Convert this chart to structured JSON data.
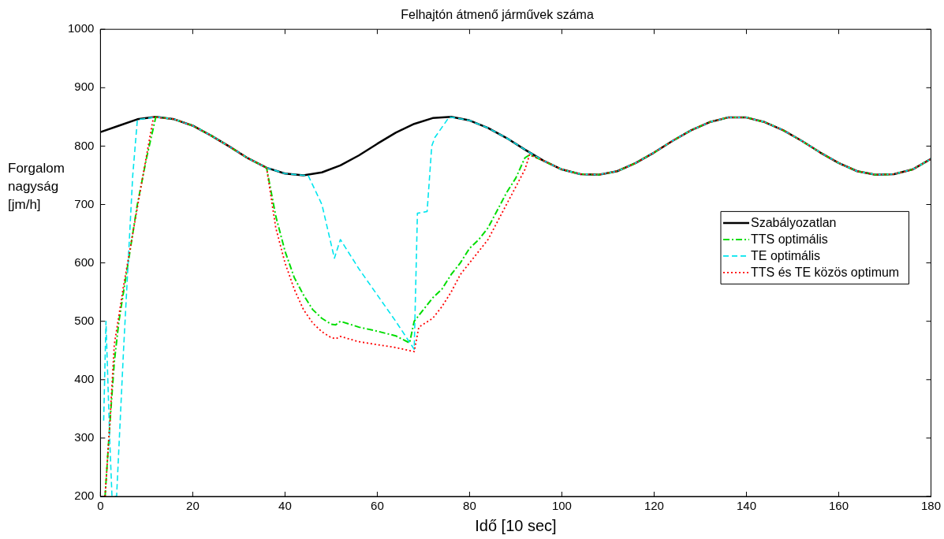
{
  "chart_data": {
    "type": "line",
    "title": "Felhajtón átmenő járművek száma",
    "xlabel": "Idő [10 sec]",
    "ylabel": "Forgalom nagyság [jm/h]",
    "xlim": [
      0,
      180
    ],
    "xticks": [
      0,
      20,
      40,
      60,
      80,
      100,
      120,
      140,
      160,
      180
    ],
    "ylim": [
      200,
      1000
    ],
    "yticks": [
      200,
      300,
      400,
      500,
      600,
      700,
      800,
      900,
      1000
    ],
    "grid": false,
    "legend": "right",
    "marker": "none",
    "series": [
      {
        "name": "Szabályozatlan",
        "color": "#000000",
        "line_style": "solid",
        "x": [
          0,
          4,
          8,
          12,
          16,
          20,
          24,
          28,
          32,
          36,
          40,
          44,
          48,
          52,
          56,
          60,
          64,
          68,
          72,
          76,
          80,
          84,
          88,
          92,
          96,
          100,
          104,
          108,
          112,
          116,
          120,
          124,
          128,
          132,
          136,
          140,
          144,
          148,
          152,
          156,
          160,
          164,
          168,
          172,
          176,
          180
        ],
        "values": [
          824,
          835,
          846,
          850,
          846,
          835,
          818,
          799,
          779,
          763,
          753,
          750,
          755,
          767,
          784,
          804,
          823,
          838,
          848,
          850,
          844,
          831,
          814,
          794,
          775,
          760,
          752,
          751,
          757,
          771,
          789,
          809,
          827,
          841,
          849,
          849,
          841,
          827,
          809,
          789,
          771,
          757,
          751,
          752,
          760,
          778
        ]
      },
      {
        "name": "TTS optimális",
        "color": "#00dd00",
        "line_style": "dashdot",
        "x": [
          1,
          2,
          3,
          4,
          6,
          8,
          10,
          12,
          16,
          20,
          24,
          28,
          32,
          36,
          38,
          40,
          42,
          44,
          46,
          48,
          50,
          51,
          52,
          56,
          60,
          64,
          67,
          68,
          70,
          72,
          74,
          76,
          78,
          80,
          82,
          84,
          86,
          88,
          90,
          92,
          93,
          96,
          100,
          104,
          108,
          112,
          116,
          120,
          124,
          128,
          132,
          136,
          140,
          144,
          148,
          152,
          156,
          160,
          164,
          168,
          172,
          176,
          180
        ],
        "values": [
          200,
          320,
          430,
          500,
          600,
          700,
          780,
          850,
          846,
          835,
          818,
          799,
          779,
          763,
          680,
          620,
          575,
          545,
          520,
          505,
          495,
          494,
          500,
          490,
          483,
          475,
          463,
          500,
          520,
          540,
          555,
          580,
          600,
          625,
          640,
          660,
          690,
          720,
          745,
          780,
          785,
          775,
          760,
          752,
          751,
          757,
          771,
          789,
          809,
          827,
          841,
          849,
          849,
          841,
          827,
          809,
          789,
          771,
          757,
          751,
          752,
          760,
          778
        ]
      },
      {
        "name": "TE optimális",
        "color": "#00e5ee",
        "line_style": "dashed",
        "x": [
          0.7,
          1.2,
          2,
          2.5,
          3.5,
          5,
          6,
          7,
          8,
          12,
          16,
          20,
          24,
          28,
          32,
          36,
          40,
          44,
          45,
          48,
          50.7,
          52,
          56,
          60,
          64,
          68,
          68.7,
          70.8,
          71.8,
          72.5,
          75.6,
          80,
          84,
          88,
          92,
          96,
          100,
          104,
          108,
          112,
          116,
          120,
          124,
          128,
          132,
          136,
          140,
          144,
          148,
          152,
          156,
          160,
          164,
          168,
          172,
          176,
          180
        ],
        "values": [
          330,
          500,
          300,
          200,
          200,
          450,
          600,
          750,
          845,
          850,
          846,
          835,
          818,
          799,
          779,
          763,
          753,
          750,
          750,
          700,
          608,
          640,
          590,
          545,
          500,
          452,
          685,
          688,
          800,
          815,
          850,
          844,
          831,
          814,
          794,
          775,
          760,
          752,
          751,
          757,
          771,
          789,
          809,
          827,
          841,
          849,
          849,
          841,
          827,
          809,
          789,
          771,
          757,
          751,
          752,
          760,
          778
        ]
      },
      {
        "name": "TTS és TE közös optimum",
        "color": "#ff0000",
        "line_style": "dotted",
        "x": [
          1,
          2,
          3,
          5,
          7,
          9,
          11.5,
          16,
          20,
          24,
          28,
          32,
          36,
          38,
          40,
          42,
          44,
          46,
          48,
          50,
          51,
          52,
          56,
          60,
          64,
          68,
          69,
          72,
          74,
          76,
          78,
          80,
          82,
          84,
          86,
          88,
          90,
          92,
          93,
          96,
          100,
          104,
          108,
          112,
          116,
          120,
          124,
          128,
          132,
          136,
          140,
          144,
          148,
          152,
          156,
          160,
          164,
          168,
          172,
          176,
          180
        ],
        "values": [
          200,
          320,
          460,
          560,
          650,
          740,
          850,
          846,
          835,
          818,
          799,
          779,
          763,
          660,
          600,
          555,
          520,
          497,
          482,
          472,
          470,
          474,
          465,
          460,
          455,
          448,
          490,
          505,
          525,
          550,
          580,
          600,
          620,
          640,
          670,
          700,
          730,
          760,
          785,
          775,
          760,
          752,
          751,
          757,
          771,
          789,
          809,
          827,
          841,
          849,
          849,
          841,
          827,
          809,
          789,
          771,
          757,
          751,
          752,
          760,
          778
        ]
      }
    ]
  }
}
